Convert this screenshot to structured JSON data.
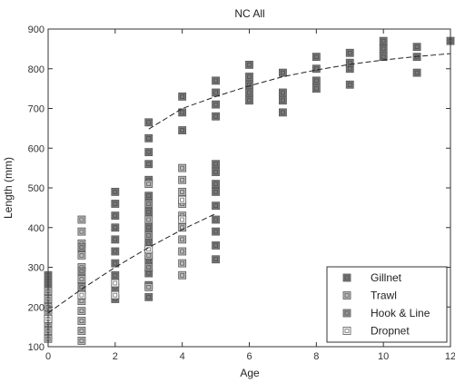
{
  "chart_data": {
    "type": "scatter",
    "title": "NC All",
    "xlabel": "Age",
    "ylabel": "Length (mm)",
    "xlim": [
      0,
      12
    ],
    "ylim": [
      100,
      900
    ],
    "xticks": [
      0,
      2,
      4,
      6,
      8,
      10,
      12
    ],
    "yticks": [
      100,
      200,
      300,
      400,
      500,
      600,
      700,
      800,
      900
    ],
    "grid": false,
    "legend_position": "bottom-right",
    "series": [
      {
        "name": "Gillnet",
        "color": "#7a7a7a",
        "points": [
          [
            0,
            280
          ],
          [
            0,
            260
          ],
          [
            2,
            220
          ],
          [
            2,
            250
          ],
          [
            2,
            280
          ],
          [
            2,
            310
          ],
          [
            2,
            340
          ],
          [
            2,
            370
          ],
          [
            2,
            400
          ],
          [
            2,
            430
          ],
          [
            2,
            460
          ],
          [
            2,
            490
          ],
          [
            3,
            225
          ],
          [
            3,
            255
          ],
          [
            3,
            285
          ],
          [
            3,
            320
          ],
          [
            3,
            360
          ],
          [
            3,
            400
          ],
          [
            3,
            440
          ],
          [
            3,
            480
          ],
          [
            3,
            520
          ],
          [
            3,
            560
          ],
          [
            3,
            590
          ],
          [
            3,
            625
          ],
          [
            3,
            665
          ],
          [
            4,
            645
          ],
          [
            4,
            690
          ],
          [
            4,
            730
          ],
          [
            5,
            320
          ],
          [
            5,
            355
          ],
          [
            5,
            390
          ],
          [
            5,
            420
          ],
          [
            5,
            455
          ],
          [
            5,
            490
          ],
          [
            5,
            510
          ],
          [
            5,
            540
          ],
          [
            5,
            560
          ],
          [
            5,
            680
          ],
          [
            5,
            710
          ],
          [
            5,
            740
          ],
          [
            5,
            770
          ],
          [
            6,
            720
          ],
          [
            6,
            740
          ],
          [
            6,
            760
          ],
          [
            6,
            780
          ],
          [
            6,
            810
          ],
          [
            7,
            690
          ],
          [
            7,
            720
          ],
          [
            7,
            740
          ],
          [
            7,
            790
          ],
          [
            8,
            750
          ],
          [
            8,
            770
          ],
          [
            8,
            800
          ],
          [
            8,
            830
          ],
          [
            9,
            760
          ],
          [
            9,
            800
          ],
          [
            9,
            815
          ],
          [
            9,
            840
          ],
          [
            10,
            830
          ],
          [
            10,
            850
          ],
          [
            10,
            870
          ],
          [
            11,
            790
          ],
          [
            11,
            830
          ],
          [
            11,
            855
          ],
          [
            12,
            870
          ]
        ]
      },
      {
        "name": "Trawl",
        "color": "#bdbdbd",
        "points": [
          [
            0,
            120
          ],
          [
            0,
            140
          ],
          [
            0,
            160
          ],
          [
            0,
            180
          ],
          [
            0,
            200
          ],
          [
            0,
            220
          ],
          [
            0,
            240
          ],
          [
            1,
            115
          ],
          [
            1,
            140
          ],
          [
            1,
            165
          ],
          [
            1,
            190
          ],
          [
            1,
            215
          ],
          [
            1,
            240
          ],
          [
            1,
            270
          ],
          [
            1,
            300
          ],
          [
            1,
            330
          ],
          [
            1,
            360
          ],
          [
            1,
            390
          ],
          [
            1,
            420
          ],
          [
            3,
            250
          ],
          [
            3,
            330
          ],
          [
            3,
            420
          ],
          [
            3,
            510
          ],
          [
            4,
            280
          ],
          [
            4,
            310
          ],
          [
            4,
            340
          ],
          [
            4,
            370
          ],
          [
            4,
            400
          ],
          [
            4,
            430
          ],
          [
            4,
            460
          ],
          [
            4,
            490
          ],
          [
            4,
            520
          ],
          [
            4,
            550
          ]
        ]
      },
      {
        "name": "Hook & Line",
        "color": "#9a9a9a",
        "points": [
          [
            1,
            250
          ],
          [
            1,
            290
          ],
          [
            1,
            350
          ],
          [
            3,
            300
          ],
          [
            3,
            380
          ],
          [
            3,
            460
          ]
        ]
      },
      {
        "name": "Dropnet",
        "color": "#ffffff",
        "points": [
          [
            0,
            170
          ],
          [
            1,
            230
          ],
          [
            2,
            230
          ],
          [
            2,
            260
          ],
          [
            3,
            345
          ],
          [
            4,
            420
          ],
          [
            4,
            470
          ]
        ]
      }
    ],
    "fitted_curves": [
      {
        "points": [
          [
            0,
            185
          ],
          [
            1,
            245
          ],
          [
            2,
            300
          ],
          [
            3,
            350
          ],
          [
            4,
            395
          ],
          [
            5,
            435
          ]
        ]
      },
      {
        "points": [
          [
            3,
            648
          ],
          [
            4,
            700
          ],
          [
            5,
            730
          ],
          [
            6,
            757
          ],
          [
            7,
            780
          ],
          [
            8,
            797
          ],
          [
            9,
            811
          ],
          [
            10,
            822
          ],
          [
            11,
            831
          ],
          [
            12,
            838
          ]
        ]
      }
    ]
  }
}
